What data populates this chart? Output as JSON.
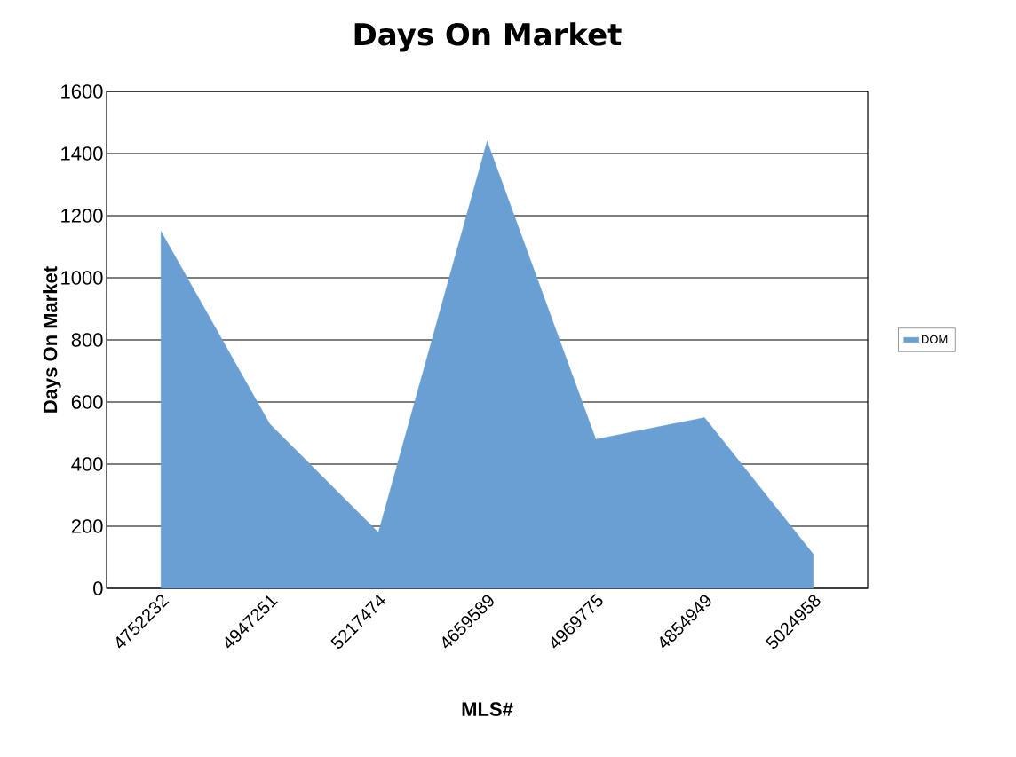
{
  "chart_data": {
    "type": "area",
    "title": "Days On Market",
    "xlabel": "MLS#",
    "ylabel": "Days On Market",
    "categories": [
      "4752232",
      "4947251",
      "5217474",
      "4659589",
      "4969775",
      "4854949",
      "5024958"
    ],
    "series": [
      {
        "name": "DOM",
        "color": "#6a9fd3",
        "values": [
          1150,
          530,
          180,
          1440,
          480,
          550,
          110
        ]
      }
    ],
    "ylim": [
      0,
      1600
    ],
    "yticks": [
      0,
      200,
      400,
      600,
      800,
      1000,
      1200,
      1400,
      1600
    ],
    "grid": "y",
    "legend": "right"
  }
}
